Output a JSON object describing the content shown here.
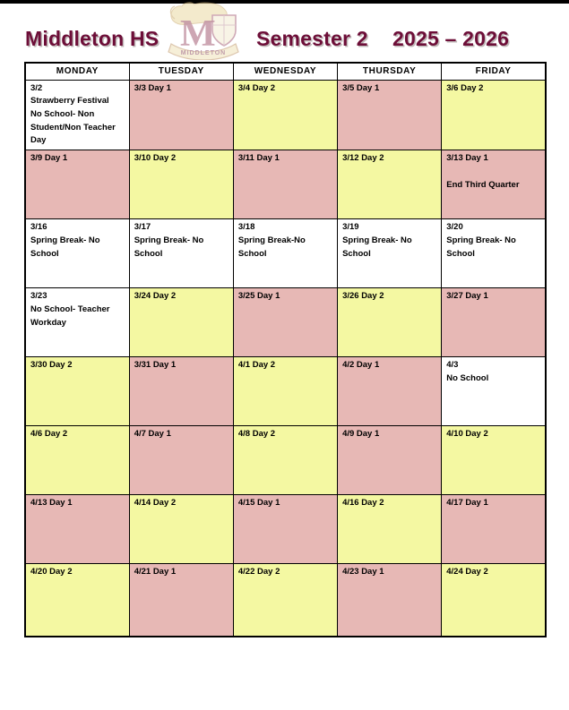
{
  "header": {
    "school_name": "Middleton HS",
    "semester": "Semester 2",
    "school_year": "2025 – 2026",
    "logo": {
      "letter": "M",
      "banner_text": "MIDDLETON"
    }
  },
  "colors": {
    "maroon": "#6d0e38",
    "cell_pink": "#e7b8b5",
    "cell_yellow": "#f4f8a2",
    "border": "#000000",
    "top_bar": "#000000"
  },
  "calendar": {
    "weekday_headers": [
      "MONDAY",
      "TUESDAY",
      "WEDNESDAY",
      "THURSDAY",
      "FRIDAY"
    ],
    "rows": [
      [
        {
          "title": "3/2",
          "notes": [
            "Strawberry Festival",
            "No School- Non",
            "Student/Non Teacher",
            "Day"
          ],
          "bg": "white"
        },
        {
          "title": "3/3 Day 1",
          "notes": [],
          "bg": "pink"
        },
        {
          "title": "3/4 Day 2",
          "notes": [],
          "bg": "yellow"
        },
        {
          "title": "3/5 Day 1",
          "notes": [],
          "bg": "pink"
        },
        {
          "title": "3/6 Day 2",
          "notes": [],
          "bg": "yellow"
        }
      ],
      [
        {
          "title": "3/9 Day 1",
          "notes": [],
          "bg": "pink"
        },
        {
          "title": "3/10 Day 2",
          "notes": [],
          "bg": "yellow"
        },
        {
          "title": "3/11 Day 1",
          "notes": [],
          "bg": "pink"
        },
        {
          "title": "3/12 Day 2",
          "notes": [],
          "bg": "yellow"
        },
        {
          "title": "3/13 Day 1",
          "notes": [
            "",
            "End Third Quarter"
          ],
          "bg": "pink"
        }
      ],
      [
        {
          "title": "3/16",
          "notes": [
            "Spring Break- No School"
          ],
          "bg": "white"
        },
        {
          "title": "3/17",
          "notes": [
            "Spring Break- No School"
          ],
          "bg": "white"
        },
        {
          "title": "3/18",
          "notes": [
            "Spring Break-No School"
          ],
          "bg": "white"
        },
        {
          "title": "3/19",
          "notes": [
            "Spring Break- No School"
          ],
          "bg": "white"
        },
        {
          "title": "3/20",
          "notes": [
            "Spring Break- No School"
          ],
          "bg": "white"
        }
      ],
      [
        {
          "title": "3/23",
          "notes": [
            "No School- Teacher",
            "Workday"
          ],
          "bg": "white"
        },
        {
          "title": "3/24 Day 2",
          "notes": [],
          "bg": "yellow"
        },
        {
          "title": "3/25 Day 1",
          "notes": [],
          "bg": "pink"
        },
        {
          "title": "3/26 Day 2",
          "notes": [],
          "bg": "yellow"
        },
        {
          "title": "3/27 Day 1",
          "notes": [],
          "bg": "pink"
        }
      ],
      [
        {
          "title": "3/30 Day 2",
          "notes": [],
          "bg": "yellow"
        },
        {
          "title": "3/31 Day 1",
          "notes": [],
          "bg": "pink"
        },
        {
          "title": "4/1 Day 2",
          "notes": [],
          "bg": "yellow"
        },
        {
          "title": "4/2 Day 1",
          "notes": [],
          "bg": "pink"
        },
        {
          "title": "4/3",
          "notes": [
            "No School"
          ],
          "bg": "white"
        }
      ],
      [
        {
          "title": "4/6 Day 2",
          "notes": [],
          "bg": "yellow"
        },
        {
          "title": "4/7 Day 1",
          "notes": [],
          "bg": "pink"
        },
        {
          "title": "4/8 Day 2",
          "notes": [],
          "bg": "yellow"
        },
        {
          "title": "4/9 Day 1",
          "notes": [],
          "bg": "pink"
        },
        {
          "title": "4/10 Day 2",
          "notes": [],
          "bg": "yellow"
        }
      ],
      [
        {
          "title": "4/13 Day 1",
          "notes": [],
          "bg": "pink"
        },
        {
          "title": "4/14 Day 2",
          "notes": [],
          "bg": "yellow"
        },
        {
          "title": "4/15 Day 1",
          "notes": [],
          "bg": "pink"
        },
        {
          "title": "4/16 Day 2",
          "notes": [],
          "bg": "yellow"
        },
        {
          "title": "4/17 Day 1",
          "notes": [],
          "bg": "pink"
        }
      ],
      [
        {
          "title": "4/20 Day 2",
          "notes": [],
          "bg": "yellow"
        },
        {
          "title": "4/21 Day 1",
          "notes": [],
          "bg": "pink"
        },
        {
          "title": "4/22 Day 2",
          "notes": [],
          "bg": "yellow"
        },
        {
          "title": "4/23 Day 1",
          "notes": [],
          "bg": "pink"
        },
        {
          "title": "4/24 Day 2",
          "notes": [],
          "bg": "yellow"
        }
      ]
    ]
  }
}
